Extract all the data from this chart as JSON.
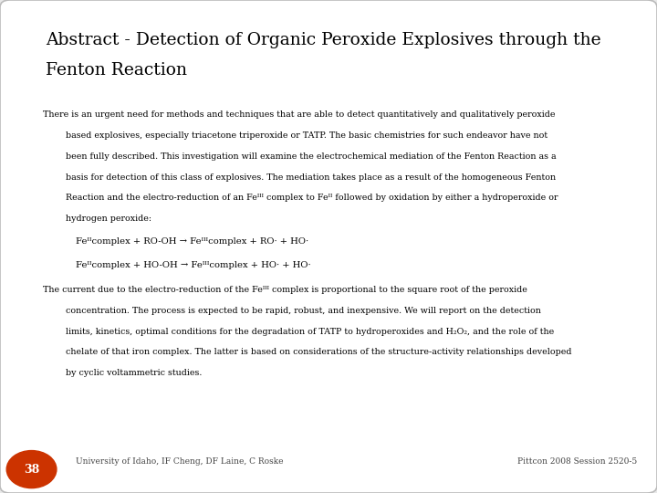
{
  "title_line1": "Abstract - Detection of Organic Peroxide Explosives through the",
  "title_line2": "Fenton Reaction",
  "para1_line1": "There is an urgent need for methods and techniques that are able to detect quantitatively and qualitatively peroxide",
  "para1_lines": [
    "based explosives, especially triacetone triperoxide or TATP. The basic chemistries for such endeavor have not",
    "been fully described. This investigation will examine the electrochemical mediation of the Fenton Reaction as a",
    "basis for detection of this class of explosives. The mediation takes place as a result of the homogeneous Fenton",
    "Reaction and the electro-reduction of an Feᴵᴵᴵ complex to Feᴵᴵ followed by oxidation by either a hydroperoxide or",
    "hydrogen peroxide:"
  ],
  "eq1": "Feᴵᴵcomplex + RO-OH → Feᴵᴵᴵcomplex + RO· + HO·",
  "eq2": "Feᴵᴵcomplex + HO-OH → Feᴵᴵᴵcomplex + HO· + HO·",
  "para2_line1": "The current due to the electro-reduction of the Feᴵᴵᴵ complex is proportional to the square root of the peroxide",
  "para2_lines": [
    "concentration. The process is expected to be rapid, robust, and inexpensive. We will report on the detection",
    "limits, kinetics, optimal conditions for the degradation of TATP to hydroperoxides and H₂O₂, and the role of the",
    "chelate of that iron complex. The latter is based on considerations of the structure-activity relationships developed",
    "by cyclic voltammetric studies."
  ],
  "footer_left": "University of Idaho, IF Cheng, DF Laine, C Roske",
  "footer_right": "Pittcon 2008 Session 2520-5",
  "page_number": "38",
  "background_color": "#ffffff",
  "slide_bg": "#e8e8e8",
  "title_color": "#000000",
  "body_color": "#000000",
  "footer_color": "#444444",
  "badge_color": "#cc3300",
  "badge_text_color": "#ffffff",
  "title_fontsize": 13.5,
  "body_fontsize": 6.8,
  "eq_fontsize": 7.2,
  "footer_fontsize": 6.5
}
